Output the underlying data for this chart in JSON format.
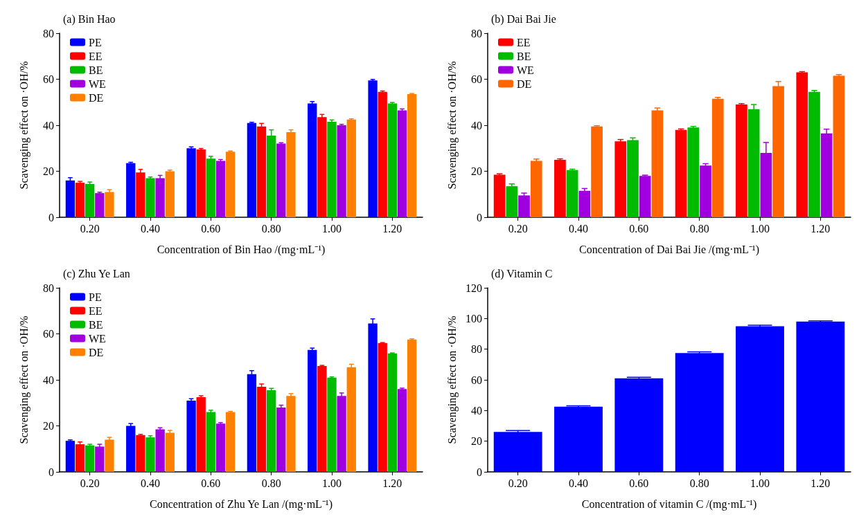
{
  "chart_data": [
    {
      "type": "bar",
      "title": "(a) Bin Hao",
      "xlabel": "Concentration of Bin Hao /(mg·mL⁻¹)",
      "ylabel": "Scavenging effect on ·OH/%",
      "categories": [
        "0.20",
        "0.40",
        "0.60",
        "0.80",
        "1.00",
        "1.20"
      ],
      "ylim": [
        0,
        80
      ],
      "yticks": [
        0,
        20,
        40,
        60,
        80
      ],
      "grid": false,
      "legend": "top left",
      "series": [
        {
          "name": "PE",
          "color": "#0000ff",
          "values": [
            16,
            23.5,
            30,
            41,
            49.5,
            59.5
          ],
          "errors": [
            1.2,
            0.4,
            0.6,
            0.3,
            0.8,
            0.4
          ]
        },
        {
          "name": "EE",
          "color": "#ff0000",
          "values": [
            15,
            19.5,
            29.5,
            39.5,
            43.5,
            54.5
          ],
          "errors": [
            0.6,
            1.3,
            0.4,
            1.3,
            1.2,
            0.4
          ]
        },
        {
          "name": "BE",
          "color": "#00bb00",
          "values": [
            14.5,
            17,
            25.5,
            35.5,
            41.5,
            49.5
          ],
          "errors": [
            0.8,
            0.5,
            1,
            2.5,
            0.8,
            0.4
          ]
        },
        {
          "name": "WE",
          "color": "#a000e0",
          "values": [
            10.5,
            17,
            24.5,
            32,
            40,
            46.5
          ],
          "errors": [
            0.4,
            1.2,
            0.6,
            0.4,
            0.4,
            0.6
          ]
        },
        {
          "name": "DE",
          "color": "#ff8000",
          "values": [
            11,
            20,
            28.5,
            37,
            42.5,
            53.5
          ],
          "errors": [
            1,
            0.5,
            0.3,
            1,
            0.3,
            0.3
          ]
        }
      ]
    },
    {
      "type": "bar",
      "title": "(b) Dai Bai Jie",
      "xlabel": "Concentration of Dai Bai Jie /(mg·mL⁻¹)",
      "ylabel": "Scavenging effect on ·OH/%",
      "categories": [
        "0.20",
        "0.40",
        "0.60",
        "0.80",
        "1.00",
        "1.20"
      ],
      "ylim": [
        0,
        80
      ],
      "yticks": [
        0,
        20,
        40,
        60,
        80
      ],
      "grid": false,
      "legend": "top left",
      "series": [
        {
          "name": "EE",
          "color": "#ff0000",
          "values": [
            18.5,
            25,
            33,
            38,
            49,
            63
          ],
          "errors": [
            0.4,
            0.4,
            0.8,
            0.4,
            0.4,
            0.3
          ]
        },
        {
          "name": "BE",
          "color": "#00bb00",
          "values": [
            13.5,
            20.5,
            33.5,
            39,
            47,
            54.5
          ],
          "errors": [
            1,
            0.4,
            1,
            0.5,
            2,
            0.6
          ]
        },
        {
          "name": "WE",
          "color": "#a000e0",
          "values": [
            9.5,
            11.5,
            18,
            22.5,
            28,
            36.5
          ],
          "errors": [
            1,
            1,
            0.3,
            0.8,
            4.5,
            1.8
          ]
        },
        {
          "name": "DE",
          "color": "#ff6600",
          "values": [
            24.5,
            39.5,
            46.5,
            51.5,
            57,
            61.5
          ],
          "errors": [
            0.8,
            0.3,
            1,
            0.6,
            2,
            0.5
          ]
        }
      ]
    },
    {
      "type": "bar",
      "title": "(c) Zhu Ye Lan",
      "xlabel": "Concentration of Zhu Ye Lan /(mg·mL⁻¹)",
      "ylabel": "Scavenging effect on ·OH/%",
      "categories": [
        "0.20",
        "0.40",
        "0.60",
        "0.80",
        "1.00",
        "1.20"
      ],
      "ylim": [
        0,
        80
      ],
      "yticks": [
        0,
        20,
        40,
        60,
        80
      ],
      "grid": false,
      "legend": "top left",
      "series": [
        {
          "name": "PE",
          "color": "#0000ff",
          "values": [
            13.5,
            20,
            31,
            42.5,
            53,
            64.5
          ],
          "errors": [
            0.4,
            1,
            0.8,
            1.5,
            0.8,
            2
          ]
        },
        {
          "name": "EE",
          "color": "#ff0000",
          "values": [
            12,
            16,
            32.5,
            37,
            46,
            56
          ],
          "errors": [
            1,
            0.3,
            0.6,
            1.2,
            0.3,
            0.2
          ]
        },
        {
          "name": "BE",
          "color": "#00bb00",
          "values": [
            11.5,
            15,
            26,
            35.5,
            41,
            51.5
          ],
          "errors": [
            0.5,
            0.7,
            0.8,
            0.8,
            0.3,
            0.2
          ]
        },
        {
          "name": "WE",
          "color": "#a000e0",
          "values": [
            11,
            18.5,
            21,
            28,
            33,
            36
          ],
          "errors": [
            1,
            0.7,
            0.4,
            1,
            1.3,
            0.4
          ]
        },
        {
          "name": "DE",
          "color": "#ff8000",
          "values": [
            14,
            17,
            26,
            33,
            45.5,
            57.5
          ],
          "errors": [
            1,
            1,
            0.3,
            1,
            1.3,
            0.3
          ]
        }
      ]
    },
    {
      "type": "bar",
      "title": "(d) Vitamin C",
      "xlabel": "Concentration of vitamin C /(mg·mL⁻¹)",
      "ylabel": "Scavenging effect on ·OH/%",
      "categories": [
        "0.20",
        "0.40",
        "0.60",
        "0.80",
        "1.00",
        "1.20"
      ],
      "ylim": [
        0,
        120
      ],
      "yticks": [
        0,
        20,
        40,
        60,
        80,
        100,
        120
      ],
      "grid": false,
      "series": [
        {
          "color": "#0000ff",
          "values": [
            26,
            42.5,
            61,
            77.5,
            95,
            98
          ],
          "errors": [
            1,
            0.6,
            0.7,
            0.8,
            0.6,
            0.5
          ]
        }
      ]
    }
  ]
}
